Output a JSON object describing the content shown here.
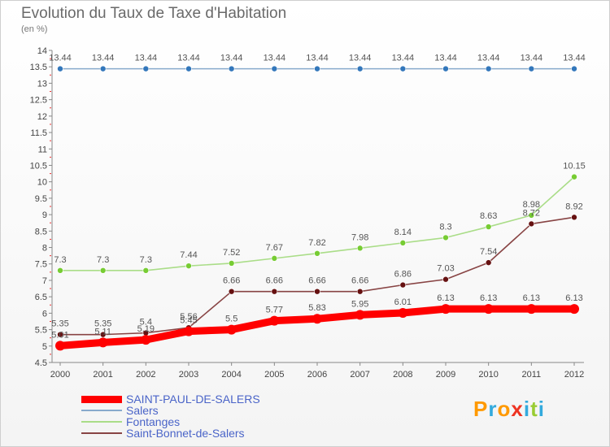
{
  "header": {
    "title": "Evolution du Taux de Taxe d'Habitation",
    "subtitle": "(en %)"
  },
  "brand": {
    "logo_text": "Proxiti",
    "colors": [
      "#ff9900",
      "#33aadd",
      "#ff9900",
      "#ee3322",
      "#33aadd",
      "#99cc33",
      "#33aadd"
    ]
  },
  "chart_data": {
    "type": "line",
    "title": "Evolution du Taux de Taxe d'Habitation",
    "subtitle": "(en %)",
    "xlabel": "",
    "ylabel": "",
    "x": [
      "2000",
      "2001",
      "2002",
      "2003",
      "2004",
      "2005",
      "2006",
      "2007",
      "2008",
      "2009",
      "2010",
      "2011",
      "2012"
    ],
    "ylim": [
      4.5,
      14
    ],
    "yticks": [
      "4.5",
      "5",
      "5.5",
      "6",
      "6.5",
      "7",
      "7.5",
      "8",
      "8.5",
      "9",
      "9.5",
      "10",
      "10.5",
      "11",
      "11.5",
      "12",
      "12.5",
      "13",
      "13.5",
      "14"
    ],
    "grid": false,
    "legend_position": "bottom-left",
    "series": [
      {
        "name": "SAINT-PAUL-DE-SALERS",
        "color": "#ff0000",
        "emphasis": "thick",
        "values": [
          5.01,
          5.11,
          5.19,
          5.45,
          5.5,
          5.77,
          5.83,
          5.95,
          6.01,
          6.13,
          6.13,
          6.13,
          6.13
        ],
        "labels": [
          "5.01",
          "5.11",
          "5.19",
          "5.45",
          "5.5",
          "5.77",
          "5.83",
          "5.95",
          "6.01",
          "6.13",
          "6.13",
          "6.13",
          "6.13"
        ]
      },
      {
        "name": "Salers",
        "color": "#88aacc",
        "marker_color": "#3377bb",
        "values": [
          13.44,
          13.44,
          13.44,
          13.44,
          13.44,
          13.44,
          13.44,
          13.44,
          13.44,
          13.44,
          13.44,
          13.44,
          13.44
        ],
        "labels": [
          "13.44",
          "13.44",
          "13.44",
          "13.44",
          "13.44",
          "13.44",
          "13.44",
          "13.44",
          "13.44",
          "13.44",
          "13.44",
          "13.44",
          "13.44"
        ]
      },
      {
        "name": "Fontanges",
        "color": "#aadd88",
        "marker_color": "#77cc33",
        "values": [
          7.3,
          7.3,
          7.3,
          7.44,
          7.52,
          7.67,
          7.82,
          7.98,
          8.14,
          8.3,
          8.63,
          8.98,
          10.15
        ],
        "labels": [
          "7.3",
          "7.3",
          "7.3",
          "7.44",
          "7.52",
          "7.67",
          "7.82",
          "7.98",
          "8.14",
          "8.3",
          "8.63",
          "8.98",
          "10.15"
        ]
      },
      {
        "name": "Saint-Bonnet-de-Salers",
        "color": "#884444",
        "marker_color": "#661111",
        "values": [
          5.35,
          5.35,
          5.4,
          5.56,
          6.66,
          6.66,
          6.66,
          6.66,
          6.86,
          7.03,
          7.54,
          8.72,
          8.92
        ],
        "labels": [
          "5.35",
          "5.35",
          "5.4",
          "5.56",
          "6.66",
          "6.66",
          "6.66",
          "6.66",
          "6.86",
          "7.03",
          "7.54",
          "8.72",
          "8.92"
        ]
      }
    ]
  }
}
